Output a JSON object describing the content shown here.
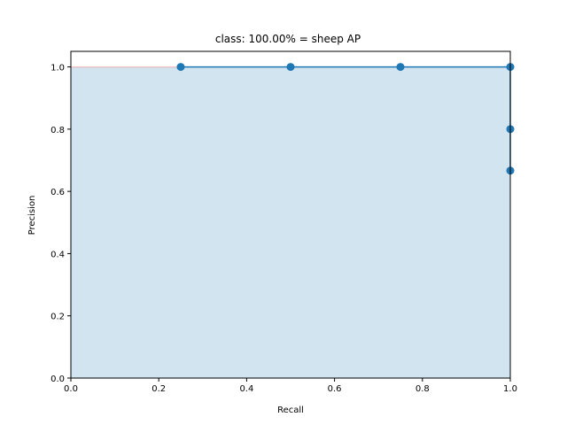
{
  "chart_data": {
    "type": "line",
    "title": "class: 100.00% = sheep AP",
    "xlabel": "Recall",
    "ylabel": "Precision",
    "xlim": [
      0.0,
      1.0
    ],
    "ylim": [
      0.0,
      1.05
    ],
    "x_ticks": [
      "0.0",
      "0.2",
      "0.4",
      "0.6",
      "0.8",
      "1.0"
    ],
    "y_ticks": [
      "0.0",
      "0.2",
      "0.4",
      "0.6",
      "0.8",
      "1.0"
    ],
    "grid": false,
    "legend": "none",
    "series": [
      {
        "x": [
          0.25,
          0.5,
          0.75,
          1.0,
          1.0,
          1.0
        ],
        "y": [
          1.0,
          1.0,
          1.0,
          1.0,
          0.8,
          0.6667
        ],
        "color": "#1f77b4",
        "markers": true
      }
    ],
    "area": {
      "x": [
        0.0,
        1.0
      ],
      "y": [
        1.0,
        1.0
      ],
      "color": "#1f77b4",
      "alpha": 0.2
    },
    "interpolated_line": {
      "x": [
        0.0,
        0.25
      ],
      "y": [
        1.0,
        1.0
      ],
      "color": "#ff0000",
      "alpha": 0.2
    }
  }
}
